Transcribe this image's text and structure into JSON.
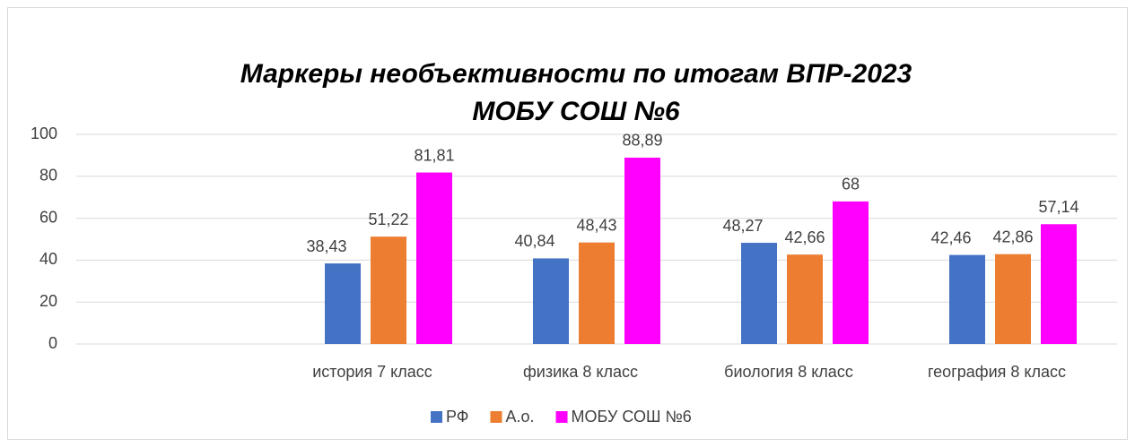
{
  "chart_data": {
    "type": "bar",
    "title": "Маркеры необъективности по итогам ВПР-2023",
    "subtitle": "МОБУ СОШ №6",
    "categories": [
      null,
      "история 7 класс",
      "физика 8 класс",
      "биология 8 класс",
      "география 8 класс"
    ],
    "series": [
      {
        "name": "РФ",
        "color": "#4472c4",
        "values": [
          null,
          38.43,
          40.84,
          48.27,
          42.46
        ],
        "value_labels": [
          null,
          "38,43",
          "40,84",
          "48,27",
          "42,46"
        ]
      },
      {
        "name": "А.о.",
        "color": "#ed7d31",
        "values": [
          null,
          51.22,
          48.43,
          42.66,
          42.86
        ],
        "value_labels": [
          null,
          "51,22",
          "48,43",
          "42,66",
          "42,86"
        ]
      },
      {
        "name": "МОБУ СОШ №6",
        "color": "#ff00ff",
        "values": [
          null,
          81.81,
          88.89,
          68,
          57.14
        ],
        "value_labels": [
          null,
          "81,81",
          "88,89",
          "68",
          "57,14"
        ]
      }
    ],
    "ylim": [
      0,
      100
    ],
    "yticks": [
      0,
      20,
      40,
      60,
      80,
      100
    ],
    "grid": true,
    "legend": "bottom"
  }
}
